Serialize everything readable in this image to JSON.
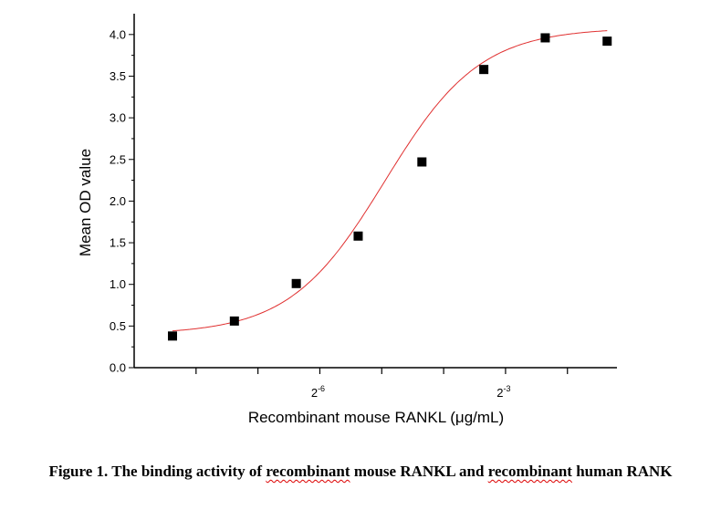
{
  "chart_data": {
    "type": "scatter",
    "title": "",
    "xlabel": "Recombinant mouse RANKL (μg/mL)",
    "ylabel": "Mean OD value",
    "xscale": "log2",
    "xlim_log2": [
      -9,
      -1.2
    ],
    "ylim": [
      0,
      4.25
    ],
    "x_ticks_log2": [
      -8,
      -7,
      -6,
      -5,
      -4,
      -3,
      -2
    ],
    "x_tick_labels": [
      {
        "log2": -6,
        "base": "2",
        "exp": "-6"
      },
      {
        "log2": -3,
        "base": "2",
        "exp": "-3"
      }
    ],
    "y_ticks": [
      "0.0",
      "0.5",
      "1.0",
      "1.5",
      "2.0",
      "2.5",
      "3.0",
      "3.5",
      "4.0"
    ],
    "y_minor_step": 0.25,
    "series": [
      {
        "name": "Mean OD",
        "marker": "square",
        "color": "#000000",
        "x": [
          0.003,
          0.006,
          0.012,
          0.024,
          0.049,
          0.098,
          0.195,
          0.39
        ],
        "y": [
          0.38,
          0.56,
          1.01,
          1.58,
          2.47,
          3.58,
          3.96,
          3.92
        ]
      }
    ],
    "fit": {
      "type": "sigmoidal (4PL)",
      "color": "#e03030",
      "bottom": 0.4,
      "top": 4.08,
      "center_log2": -4.95,
      "slope": 1.3
    },
    "grid": false
  },
  "caption": {
    "prefix": "Figure 1. The binding activity of ",
    "word1": "recombinant",
    "middle": " mouse RANKL and ",
    "word2": "recombinant",
    "suffix": " human RANK"
  }
}
